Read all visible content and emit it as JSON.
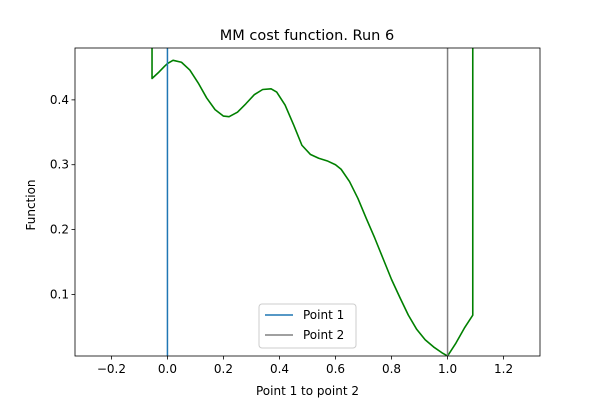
{
  "chart_data": {
    "type": "line",
    "title": "MM cost function. Run 6",
    "xlabel": "Point 1 to point 2",
    "ylabel": "Function",
    "xlim": [
      -0.33,
      1.33
    ],
    "ylim": [
      0.005,
      0.48
    ],
    "xticks": [
      -0.2,
      0.0,
      0.2,
      0.4,
      0.6,
      0.8,
      1.0,
      1.2
    ],
    "xtick_labels": [
      "−0.2",
      "0.0",
      "0.2",
      "0.4",
      "0.6",
      "0.8",
      "1.0",
      "1.2"
    ],
    "yticks": [
      0.1,
      0.2,
      0.3,
      0.4
    ],
    "ytick_labels": [
      "0.1",
      "0.2",
      "0.3",
      "0.4"
    ],
    "grid": false,
    "legend_position": "bottom-center",
    "series": [
      {
        "name": "",
        "color": "#008000",
        "x": [
          -0.055,
          -0.055,
          -0.03,
          -0.01,
          0.0,
          0.02,
          0.05,
          0.08,
          0.11,
          0.14,
          0.17,
          0.2,
          0.22,
          0.25,
          0.28,
          0.31,
          0.34,
          0.37,
          0.39,
          0.42,
          0.45,
          0.48,
          0.51,
          0.54,
          0.57,
          0.6,
          0.62,
          0.65,
          0.68,
          0.71,
          0.74,
          0.77,
          0.8,
          0.83,
          0.86,
          0.89,
          0.92,
          0.95,
          0.98,
          1.0,
          1.03,
          1.06,
          1.09,
          1.09
        ],
        "y": [
          0.48,
          0.433,
          0.443,
          0.452,
          0.456,
          0.461,
          0.458,
          0.446,
          0.426,
          0.403,
          0.385,
          0.375,
          0.374,
          0.381,
          0.394,
          0.408,
          0.416,
          0.417,
          0.412,
          0.392,
          0.362,
          0.33,
          0.316,
          0.31,
          0.306,
          0.3,
          0.293,
          0.274,
          0.248,
          0.217,
          0.187,
          0.155,
          0.123,
          0.095,
          0.068,
          0.046,
          0.03,
          0.019,
          0.01,
          0.005,
          0.025,
          0.048,
          0.068,
          0.48
        ]
      }
    ],
    "vlines": [
      {
        "name": "Point 1",
        "x": 0.0,
        "color": "#1f77b4"
      },
      {
        "name": "Point 2",
        "x": 1.0,
        "color": "#808080"
      }
    ]
  }
}
